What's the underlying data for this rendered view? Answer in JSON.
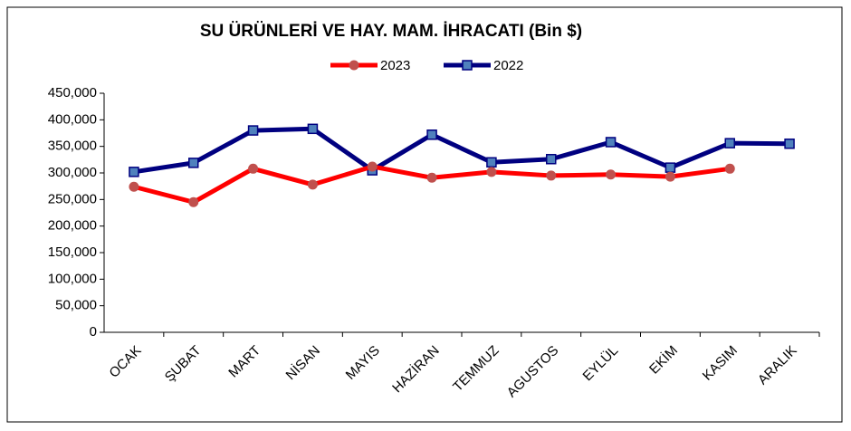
{
  "chart_data": {
    "type": "line",
    "title": "SU ÜRÜNLERİ VE HAY. MAM. İHRACATI (Bin $)",
    "categories": [
      "OCAK",
      "ŞUBAT",
      "MART",
      "NİSAN",
      "MAYIS",
      "HAZİRAN",
      "TEMMUZ",
      "AGUSTOS",
      "EYLÜL",
      "EKİM",
      "KASIM",
      "ARALIK"
    ],
    "series": [
      {
        "name": "2023",
        "color": "#ff0000",
        "marker": "circle",
        "marker_color": "#c0504d",
        "values": [
          274000,
          245000,
          308000,
          278000,
          312000,
          291000,
          302000,
          295000,
          297000,
          293000,
          308000,
          null
        ]
      },
      {
        "name": "2022",
        "color": "#000080",
        "marker": "square",
        "marker_color": "#4f81bd",
        "values": [
          302000,
          319000,
          380000,
          383000,
          305000,
          372000,
          320000,
          326000,
          358000,
          310000,
          356000,
          355000
        ]
      }
    ],
    "ylim": [
      0,
      450000
    ],
    "yticks": [
      0,
      {
        "value": 50000,
        "label": "50,000"
      },
      {
        "value": 100000,
        "label": "100,000"
      },
      {
        "value": 150000,
        "label": "150,000"
      },
      {
        "value": 200000,
        "label": "200,000"
      },
      {
        "value": 250000,
        "label": "250,000"
      },
      {
        "value": 300000,
        "label": "300,000"
      },
      {
        "value": 350000,
        "label": "350,000"
      },
      {
        "value": 400000,
        "label": "400,000"
      },
      {
        "value": 450000,
        "label": "450,000"
      }
    ],
    "grid": false,
    "legend": "top"
  }
}
